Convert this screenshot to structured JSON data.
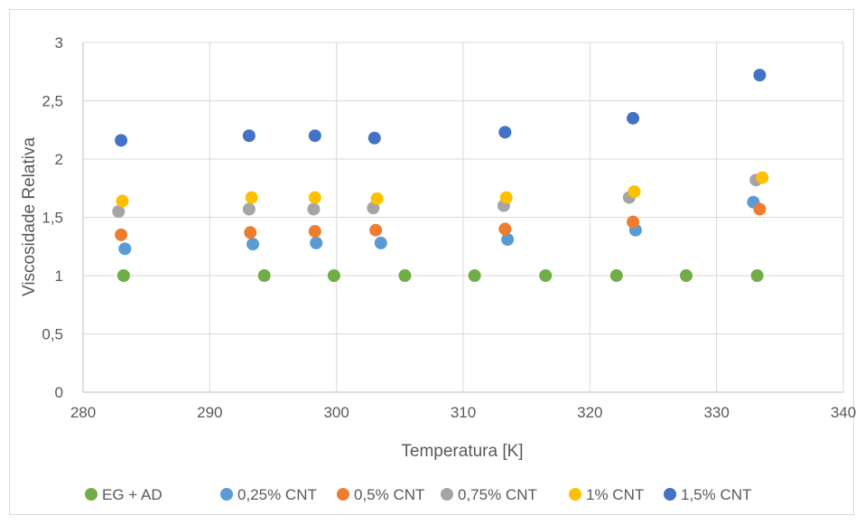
{
  "chart_data": {
    "type": "scatter",
    "title": "",
    "xlabel": "Temperatura [K]",
    "ylabel": "Viscosidade Relativa",
    "xlim": [
      280,
      340
    ],
    "ylim": [
      0,
      3
    ],
    "x_ticks": [
      280,
      290,
      300,
      310,
      320,
      330,
      340
    ],
    "y_ticks": [
      0,
      0.5,
      1,
      1.5,
      2,
      2.5,
      3
    ],
    "x_tick_labels": [
      "280",
      "290",
      "300",
      "310",
      "320",
      "330",
      "340"
    ],
    "y_tick_labels": [
      "0",
      "0,5",
      "1",
      "1,5",
      "2",
      "2,5",
      "3"
    ],
    "grid": true,
    "legend_position": "bottom",
    "series": [
      {
        "name": "EG + AD",
        "color": "#70ad47",
        "points": [
          [
            283.2,
            1
          ],
          [
            294.3,
            1
          ],
          [
            299.8,
            1
          ],
          [
            305.4,
            1
          ],
          [
            310.9,
            1
          ],
          [
            316.5,
            1
          ],
          [
            322.1,
            1
          ],
          [
            327.6,
            1
          ],
          [
            333.2,
            1
          ]
        ]
      },
      {
        "name": "0,25% CNT",
        "color": "#5b9bd5",
        "points": [
          [
            283.3,
            1.23
          ],
          [
            293.4,
            1.27
          ],
          [
            298.4,
            1.28
          ],
          [
            303.5,
            1.28
          ],
          [
            313.5,
            1.31
          ],
          [
            323.6,
            1.39
          ],
          [
            332.9,
            1.63
          ]
        ]
      },
      {
        "name": "0,5% CNT",
        "color": "#ed7d31",
        "points": [
          [
            283.0,
            1.35
          ],
          [
            293.2,
            1.37
          ],
          [
            298.3,
            1.38
          ],
          [
            303.1,
            1.39
          ],
          [
            313.3,
            1.4
          ],
          [
            323.4,
            1.46
          ],
          [
            333.4,
            1.57
          ]
        ]
      },
      {
        "name": "0,75% CNT",
        "color": "#a5a5a5",
        "points": [
          [
            282.8,
            1.55
          ],
          [
            293.1,
            1.57
          ],
          [
            298.2,
            1.57
          ],
          [
            302.9,
            1.58
          ],
          [
            313.2,
            1.6
          ],
          [
            323.1,
            1.67
          ],
          [
            333.1,
            1.82
          ]
        ]
      },
      {
        "name": "1% CNT",
        "color": "#ffc000",
        "points": [
          [
            283.1,
            1.64
          ],
          [
            293.3,
            1.67
          ],
          [
            298.3,
            1.67
          ],
          [
            303.2,
            1.66
          ],
          [
            313.4,
            1.67
          ],
          [
            323.5,
            1.72
          ],
          [
            333.6,
            1.84
          ]
        ]
      },
      {
        "name": "1,5% CNT",
        "color": "#4472c4",
        "points": [
          [
            283.0,
            2.16
          ],
          [
            293.1,
            2.2
          ],
          [
            298.3,
            2.2
          ],
          [
            303.0,
            2.18
          ],
          [
            313.3,
            2.23
          ],
          [
            323.4,
            2.35
          ],
          [
            333.4,
            2.72
          ]
        ]
      }
    ]
  }
}
